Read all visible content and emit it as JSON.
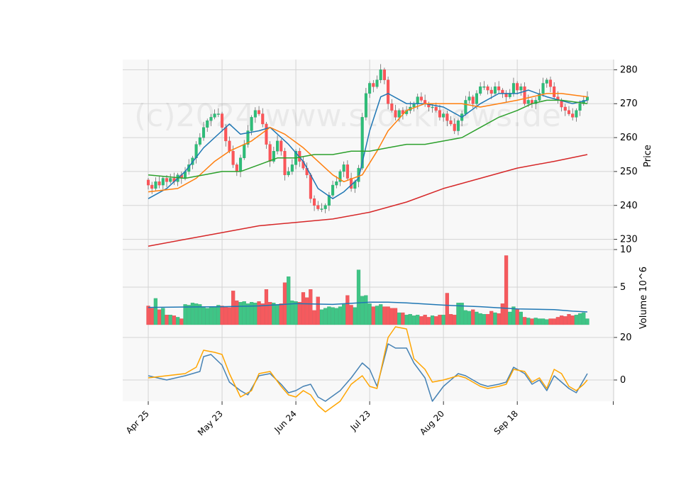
{
  "watermark": "(c)2024 www.stocknews.de",
  "chart_data": {
    "type": "candlestick",
    "x_tick_labels": [
      "Apr 25",
      "May 23",
      "Jun 24",
      "Jul 23",
      "Aug 20",
      "Sep 18"
    ],
    "x_tick_index": [
      0,
      20,
      40,
      60,
      80,
      100
    ],
    "n_days": 120,
    "price_panel": {
      "ylabel": "Price",
      "ylim": [
        227,
        283
      ],
      "y_ticks": [
        230,
        240,
        250,
        260,
        270,
        280
      ],
      "closes": [
        246,
        245,
        247,
        246,
        248,
        247,
        248,
        247,
        249,
        248,
        250,
        252,
        254,
        258,
        260,
        263,
        265,
        266,
        267,
        267,
        263,
        259,
        256,
        252,
        250,
        254,
        258,
        262,
        266,
        268,
        267,
        264,
        258,
        253,
        256,
        259,
        256,
        249,
        250,
        252,
        256,
        253,
        251,
        249,
        242,
        240,
        239,
        239,
        240,
        243,
        246,
        247,
        250,
        252,
        248,
        245,
        247,
        251,
        266,
        273,
        276,
        275,
        277,
        280,
        277,
        270,
        268,
        266,
        268,
        267,
        268,
        269,
        270,
        272,
        271,
        270,
        269,
        269,
        268,
        266,
        267,
        265,
        264,
        262,
        265,
        267,
        271,
        272,
        270,
        273,
        275,
        275,
        274,
        273,
        275,
        274,
        273,
        272,
        273,
        276,
        274,
        275,
        270,
        271,
        270,
        271,
        273,
        276,
        277,
        275,
        272,
        271,
        269,
        268,
        267,
        266,
        268,
        270,
        271,
        272
      ],
      "moving_averages": [
        {
          "color": "#1f77b4",
          "start": 242,
          "points": [
            [
              0,
              242
            ],
            [
              5,
              245
            ],
            [
              10,
              250
            ],
            [
              15,
              257
            ],
            [
              20,
              262
            ],
            [
              22,
              264
            ],
            [
              25,
              261
            ],
            [
              30,
              262
            ],
            [
              33,
              263
            ],
            [
              38,
              258
            ],
            [
              42,
              253
            ],
            [
              46,
              245
            ],
            [
              50,
              242
            ],
            [
              53,
              244
            ],
            [
              57,
              248
            ],
            [
              60,
              262
            ],
            [
              63,
              272
            ],
            [
              65,
              273
            ],
            [
              70,
              270
            ],
            [
              75,
              270
            ],
            [
              80,
              269
            ],
            [
              85,
              266
            ],
            [
              90,
              270
            ],
            [
              95,
              273
            ],
            [
              100,
              273
            ],
            [
              103,
              274
            ],
            [
              108,
              272
            ],
            [
              115,
              270
            ],
            [
              119,
              271
            ]
          ]
        },
        {
          "color": "#ff7f0e",
          "points": [
            [
              0,
              244
            ],
            [
              8,
              245
            ],
            [
              13,
              248
            ],
            [
              18,
              253
            ],
            [
              22,
              256
            ],
            [
              28,
              259
            ],
            [
              33,
              263
            ],
            [
              37,
              261
            ],
            [
              42,
              257
            ],
            [
              46,
              253
            ],
            [
              50,
              249
            ],
            [
              53,
              247
            ],
            [
              58,
              249
            ],
            [
              62,
              256
            ],
            [
              65,
              262
            ],
            [
              70,
              268
            ],
            [
              75,
              270
            ],
            [
              80,
              270
            ],
            [
              85,
              270
            ],
            [
              90,
              269
            ],
            [
              95,
              270
            ],
            [
              100,
              271
            ],
            [
              104,
              272
            ],
            [
              108,
              273
            ],
            [
              112,
              273
            ],
            [
              119,
              272
            ]
          ]
        },
        {
          "color": "#2ca02c",
          "points": [
            [
              0,
              249
            ],
            [
              10,
              248
            ],
            [
              15,
              249
            ],
            [
              20,
              250
            ],
            [
              25,
              250
            ],
            [
              30,
              252
            ],
            [
              35,
              254
            ],
            [
              40,
              254
            ],
            [
              45,
              255
            ],
            [
              50,
              255
            ],
            [
              55,
              256
            ],
            [
              60,
              256
            ],
            [
              65,
              257
            ],
            [
              70,
              258
            ],
            [
              75,
              258
            ],
            [
              80,
              259
            ],
            [
              85,
              260
            ],
            [
              90,
              263
            ],
            [
              95,
              266
            ],
            [
              100,
              268
            ],
            [
              104,
              270
            ],
            [
              108,
              271
            ],
            [
              112,
              271
            ],
            [
              119,
              270
            ]
          ]
        },
        {
          "color": "#d62728",
          "points": [
            [
              0,
              228
            ],
            [
              10,
              230
            ],
            [
              20,
              232
            ],
            [
              30,
              234
            ],
            [
              40,
              235
            ],
            [
              50,
              236
            ],
            [
              60,
              238
            ],
            [
              70,
              241
            ],
            [
              80,
              245
            ],
            [
              90,
              248
            ],
            [
              100,
              251
            ],
            [
              110,
              253
            ],
            [
              119,
              255
            ]
          ]
        }
      ]
    },
    "volume_panel": {
      "ylabel": "Volume  10^6",
      "ylim": [
        0,
        10
      ],
      "y_ticks": [
        5,
        10
      ],
      "volumes": [
        2.5,
        2.2,
        3.5,
        2.0,
        2.2,
        1.3,
        1.3,
        1.2,
        1.0,
        0.8,
        2.7,
        2.6,
        2.9,
        2.8,
        2.7,
        2.4,
        2.2,
        2.3,
        2.4,
        2.6,
        2.5,
        2.4,
        2.3,
        4.5,
        3.2,
        3.0,
        3.1,
        2.8,
        3.0,
        2.9,
        3.1,
        2.8,
        4.7,
        3.0,
        2.9,
        2.7,
        2.8,
        5.6,
        6.4,
        3.2,
        3.1,
        3.0,
        4.3,
        3.6,
        4.7,
        1.9,
        3.7,
        2.0,
        2.2,
        2.4,
        2.3,
        2.2,
        2.4,
        2.7,
        3.9,
        2.6,
        2.3,
        7.3,
        3.8,
        3.9,
        2.8,
        2.4,
        2.5,
        2.7,
        2.4,
        2.4,
        2.2,
        2.2,
        1.6,
        1.6,
        1.3,
        1.4,
        1.2,
        1.3,
        1.1,
        1.3,
        1.0,
        1.2,
        1.1,
        1.3,
        1.3,
        4.2,
        1.4,
        1.3,
        2.9,
        2.9,
        1.9,
        1.8,
        2.0,
        1.7,
        1.5,
        1.4,
        1.4,
        1.8,
        1.6,
        1.5,
        2.8,
        9.2,
        1.7,
        2.4,
        2.1,
        1.7,
        1.0,
        0.9,
        0.8,
        0.9,
        0.8,
        0.8,
        0.7,
        0.8,
        0.8,
        1.0,
        1.2,
        1.1,
        1.4,
        1.2,
        1.3,
        1.5,
        1.6,
        0.8
      ],
      "avg_color": "#1f77b4",
      "avg_points": [
        [
          0,
          2.3
        ],
        [
          20,
          2.4
        ],
        [
          30,
          2.5
        ],
        [
          40,
          2.8
        ],
        [
          50,
          2.7
        ],
        [
          60,
          3.0
        ],
        [
          65,
          3.0
        ],
        [
          70,
          2.9
        ],
        [
          80,
          2.6
        ],
        [
          90,
          2.4
        ],
        [
          100,
          2.1
        ],
        [
          110,
          2.0
        ],
        [
          115,
          1.8
        ],
        [
          119,
          1.7
        ]
      ]
    },
    "oscillator_panel": {
      "ylim": [
        -10,
        26
      ],
      "y_ticks": [
        0,
        20
      ],
      "series": [
        {
          "color": "#4682b4",
          "points": [
            [
              0,
              2
            ],
            [
              5,
              0
            ],
            [
              10,
              2
            ],
            [
              14,
              4
            ],
            [
              15,
              11
            ],
            [
              17,
              12
            ],
            [
              20,
              7
            ],
            [
              22,
              -1
            ],
            [
              25,
              -5
            ],
            [
              27,
              -7
            ],
            [
              30,
              2
            ],
            [
              33,
              3
            ],
            [
              36,
              -2
            ],
            [
              38,
              -6
            ],
            [
              40,
              -5
            ],
            [
              42,
              -3
            ],
            [
              44,
              -2
            ],
            [
              46,
              -8
            ],
            [
              48,
              -10
            ],
            [
              52,
              -5
            ],
            [
              55,
              1
            ],
            [
              58,
              8
            ],
            [
              60,
              5
            ],
            [
              62,
              -3
            ],
            [
              65,
              17
            ],
            [
              67,
              15
            ],
            [
              70,
              15
            ],
            [
              72,
              8
            ],
            [
              75,
              1
            ],
            [
              77,
              -10
            ],
            [
              80,
              -3
            ],
            [
              84,
              3
            ],
            [
              86,
              2
            ],
            [
              88,
              0
            ],
            [
              90,
              -2
            ],
            [
              92,
              -3
            ],
            [
              95,
              -2
            ],
            [
              97,
              -1
            ],
            [
              99,
              6
            ],
            [
              102,
              3
            ],
            [
              104,
              -2
            ],
            [
              106,
              0
            ],
            [
              108,
              -5
            ],
            [
              110,
              2
            ],
            [
              112,
              -1
            ],
            [
              114,
              -4
            ],
            [
              116,
              -6
            ],
            [
              118,
              0
            ],
            [
              119,
              3
            ]
          ]
        },
        {
          "color": "#ffa500",
          "points": [
            [
              0,
              1
            ],
            [
              5,
              2
            ],
            [
              10,
              3
            ],
            [
              13,
              6
            ],
            [
              15,
              14
            ],
            [
              18,
              13
            ],
            [
              20,
              12
            ],
            [
              22,
              3
            ],
            [
              25,
              -8
            ],
            [
              28,
              -5
            ],
            [
              30,
              3
            ],
            [
              33,
              4
            ],
            [
              36,
              -3
            ],
            [
              38,
              -7
            ],
            [
              40,
              -8
            ],
            [
              42,
              -5
            ],
            [
              44,
              -7
            ],
            [
              46,
              -12
            ],
            [
              48,
              -15
            ],
            [
              52,
              -10
            ],
            [
              55,
              -2
            ],
            [
              58,
              2
            ],
            [
              60,
              -3
            ],
            [
              62,
              -4
            ],
            [
              65,
              20
            ],
            [
              67,
              25
            ],
            [
              70,
              24
            ],
            [
              72,
              10
            ],
            [
              75,
              5
            ],
            [
              77,
              -1
            ],
            [
              80,
              0
            ],
            [
              84,
              2
            ],
            [
              86,
              1
            ],
            [
              88,
              -1
            ],
            [
              90,
              -3
            ],
            [
              92,
              -4
            ],
            [
              95,
              -3
            ],
            [
              97,
              -2
            ],
            [
              99,
              5
            ],
            [
              102,
              4
            ],
            [
              104,
              -1
            ],
            [
              106,
              1
            ],
            [
              108,
              -4
            ],
            [
              110,
              5
            ],
            [
              112,
              3
            ],
            [
              114,
              -3
            ],
            [
              116,
              -5
            ],
            [
              118,
              -2
            ],
            [
              119,
              0
            ]
          ]
        }
      ]
    }
  }
}
